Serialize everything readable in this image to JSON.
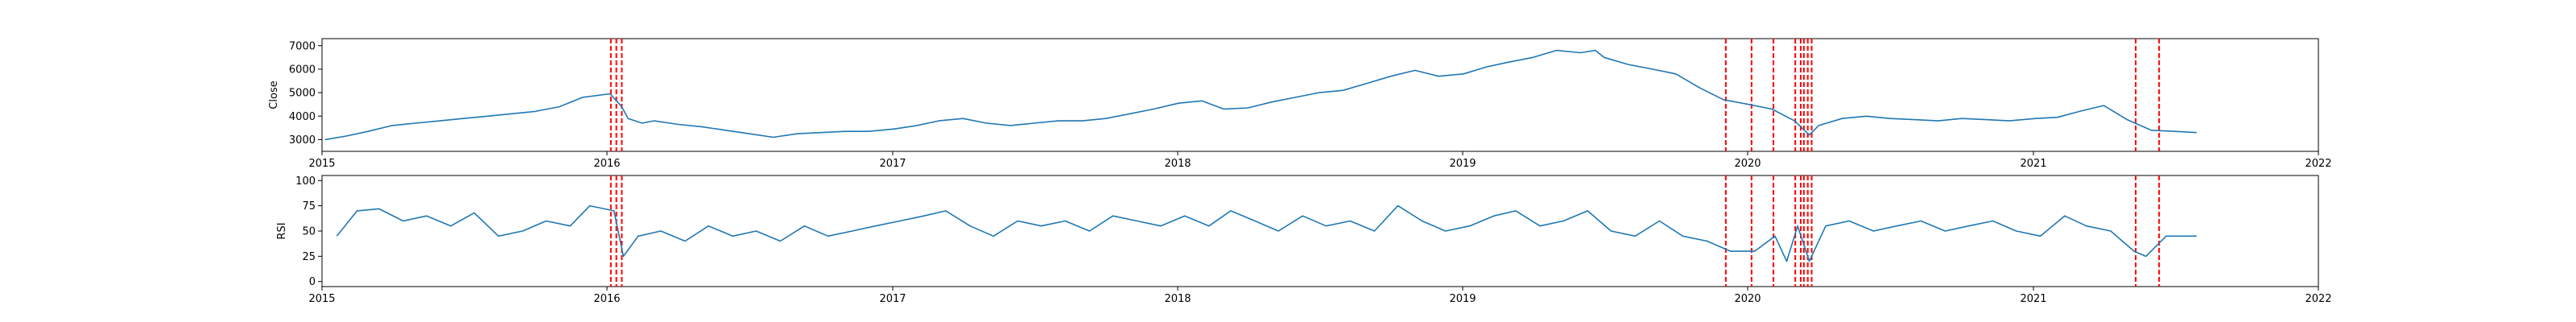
{
  "chart_data": [
    {
      "type": "line",
      "ylabel": "Close",
      "xlim": [
        "2015-01-01",
        "2022-01-01"
      ],
      "ylim": [
        2500,
        7300
      ],
      "y_ticks": [
        3000,
        4000,
        5000,
        6000,
        7000
      ],
      "x_ticks": [
        "2015",
        "2016",
        "2017",
        "2018",
        "2019",
        "2020",
        "2021",
        "2022"
      ],
      "line_color": "#1f77b4",
      "marker_color": "#ff0000",
      "grid": false,
      "series": [
        {
          "x": [
            "2015-01-05",
            "2015-02-01",
            "2015-03-01",
            "2015-04-01",
            "2015-05-01",
            "2015-06-01",
            "2015-07-01",
            "2015-08-01",
            "2015-09-01",
            "2015-10-01",
            "2015-11-01",
            "2015-12-01",
            "2016-01-05",
            "2016-01-20",
            "2016-01-28",
            "2016-02-15",
            "2016-03-01",
            "2016-04-01",
            "2016-05-01",
            "2016-06-01",
            "2016-07-01",
            "2016-08-01",
            "2016-09-01",
            "2016-10-01",
            "2016-11-01",
            "2016-12-01",
            "2017-01-02",
            "2017-02-01",
            "2017-03-01",
            "2017-04-01",
            "2017-05-01",
            "2017-06-01",
            "2017-07-01",
            "2017-08-01",
            "2017-09-01",
            "2017-10-01",
            "2017-11-01",
            "2017-12-01",
            "2018-01-02",
            "2018-02-01",
            "2018-03-01",
            "2018-04-01",
            "2018-05-01",
            "2018-06-01",
            "2018-07-01",
            "2018-08-01",
            "2018-09-01",
            "2018-10-01",
            "2018-11-01",
            "2018-12-01",
            "2019-01-02",
            "2019-02-01",
            "2019-03-01",
            "2019-04-01",
            "2019-05-01",
            "2019-06-01",
            "2019-06-20",
            "2019-07-01",
            "2019-08-01",
            "2019-09-01",
            "2019-10-01",
            "2019-11-01",
            "2019-12-01",
            "2020-01-02",
            "2020-02-01",
            "2020-03-01",
            "2020-03-20",
            "2020-04-01",
            "2020-05-01",
            "2020-06-01",
            "2020-07-01",
            "2020-08-01",
            "2020-09-01",
            "2020-10-01",
            "2020-11-01",
            "2020-12-01",
            "2021-01-04",
            "2021-02-01",
            "2021-03-01",
            "2021-04-01",
            "2021-05-01",
            "2021-06-01",
            "2021-07-01",
            "2021-07-29"
          ],
          "y": [
            3000,
            3150,
            3350,
            3600,
            3700,
            3800,
            3900,
            4000,
            4100,
            4200,
            4400,
            4800,
            4950,
            4400,
            3900,
            3700,
            3800,
            3650,
            3550,
            3400,
            3250,
            3100,
            3250,
            3300,
            3350,
            3350,
            3450,
            3600,
            3800,
            3900,
            3700,
            3600,
            3700,
            3800,
            3800,
            3900,
            4100,
            4300,
            4550,
            4650,
            4300,
            4350,
            4600,
            4800,
            5000,
            5100,
            5400,
            5700,
            5950,
            5700,
            5800,
            6100,
            6300,
            6500,
            6800,
            6700,
            6800,
            6500,
            6200,
            6000,
            5800,
            5200,
            4700,
            4500,
            4300,
            3800,
            3200,
            3600,
            3900,
            4000,
            3900,
            3850,
            3800,
            3900,
            3850,
            3800,
            3900,
            3950,
            4200,
            4450,
            3850,
            3400,
            3350,
            3300
          ]
        }
      ],
      "event_dates": [
        "2016-01-06",
        "2016-01-13",
        "2016-01-20",
        "2019-12-04",
        "2020-01-06",
        "2020-02-03",
        "2020-03-02",
        "2020-03-09",
        "2020-03-13",
        "2020-03-18",
        "2020-03-23",
        "2021-05-12",
        "2021-06-11"
      ]
    },
    {
      "type": "line",
      "ylabel": "RSI",
      "xlim": [
        "2015-01-01",
        "2022-01-01"
      ],
      "ylim": [
        -5,
        105
      ],
      "y_ticks": [
        0,
        25,
        50,
        75,
        100
      ],
      "x_ticks": [
        "2015",
        "2016",
        "2017",
        "2018",
        "2019",
        "2020",
        "2021",
        "2022"
      ],
      "line_color": "#1f77b4",
      "marker_color": "#ff0000",
      "grid": false,
      "series": [
        {
          "x": [
            "2015-01-20",
            "2015-02-15",
            "2015-03-15",
            "2015-04-15",
            "2015-05-15",
            "2015-06-15",
            "2015-07-15",
            "2015-08-15",
            "2015-09-15",
            "2015-10-15",
            "2015-11-15",
            "2015-12-10",
            "2016-01-10",
            "2016-01-22",
            "2016-02-10",
            "2016-03-10",
            "2016-04-10",
            "2016-05-10",
            "2016-06-10",
            "2016-07-10",
            "2016-08-10",
            "2016-09-10",
            "2016-10-10",
            "2016-11-10",
            "2016-12-10",
            "2017-01-10",
            "2017-02-10",
            "2017-03-10",
            "2017-04-10",
            "2017-05-10",
            "2017-06-10",
            "2017-07-10",
            "2017-08-10",
            "2017-09-10",
            "2017-10-10",
            "2017-11-10",
            "2017-12-10",
            "2018-01-10",
            "2018-02-10",
            "2018-03-10",
            "2018-04-10",
            "2018-05-10",
            "2018-06-10",
            "2018-07-10",
            "2018-08-10",
            "2018-09-10",
            "2018-10-10",
            "2018-11-10",
            "2018-12-10",
            "2019-01-10",
            "2019-02-10",
            "2019-03-10",
            "2019-04-10",
            "2019-05-10",
            "2019-06-10",
            "2019-07-10",
            "2019-08-10",
            "2019-09-10",
            "2019-10-10",
            "2019-11-10",
            "2019-12-10",
            "2020-01-10",
            "2020-02-05",
            "2020-02-20",
            "2020-03-05",
            "2020-03-20",
            "2020-04-10",
            "2020-05-10",
            "2020-06-10",
            "2020-07-10",
            "2020-08-10",
            "2020-09-10",
            "2020-10-10",
            "2020-11-10",
            "2020-12-10",
            "2021-01-10",
            "2021-02-10",
            "2021-03-10",
            "2021-04-10",
            "2021-05-10",
            "2021-05-25",
            "2021-06-20",
            "2021-07-29"
          ],
          "y": [
            45,
            70,
            72,
            60,
            65,
            55,
            68,
            45,
            50,
            60,
            55,
            75,
            70,
            25,
            45,
            50,
            40,
            55,
            45,
            50,
            40,
            55,
            45,
            50,
            55,
            60,
            65,
            70,
            55,
            45,
            60,
            55,
            60,
            50,
            65,
            60,
            55,
            65,
            55,
            70,
            60,
            50,
            65,
            55,
            60,
            50,
            75,
            60,
            50,
            55,
            65,
            70,
            55,
            60,
            70,
            50,
            45,
            60,
            45,
            40,
            30,
            30,
            45,
            20,
            55,
            20,
            55,
            60,
            50,
            55,
            60,
            50,
            55,
            60,
            50,
            45,
            65,
            55,
            50,
            30,
            25,
            45,
            45
          ]
        }
      ],
      "event_dates": [
        "2016-01-06",
        "2016-01-13",
        "2016-01-20",
        "2019-12-04",
        "2020-01-06",
        "2020-02-03",
        "2020-03-02",
        "2020-03-09",
        "2020-03-13",
        "2020-03-18",
        "2020-03-23",
        "2021-05-12",
        "2021-06-11"
      ]
    }
  ]
}
